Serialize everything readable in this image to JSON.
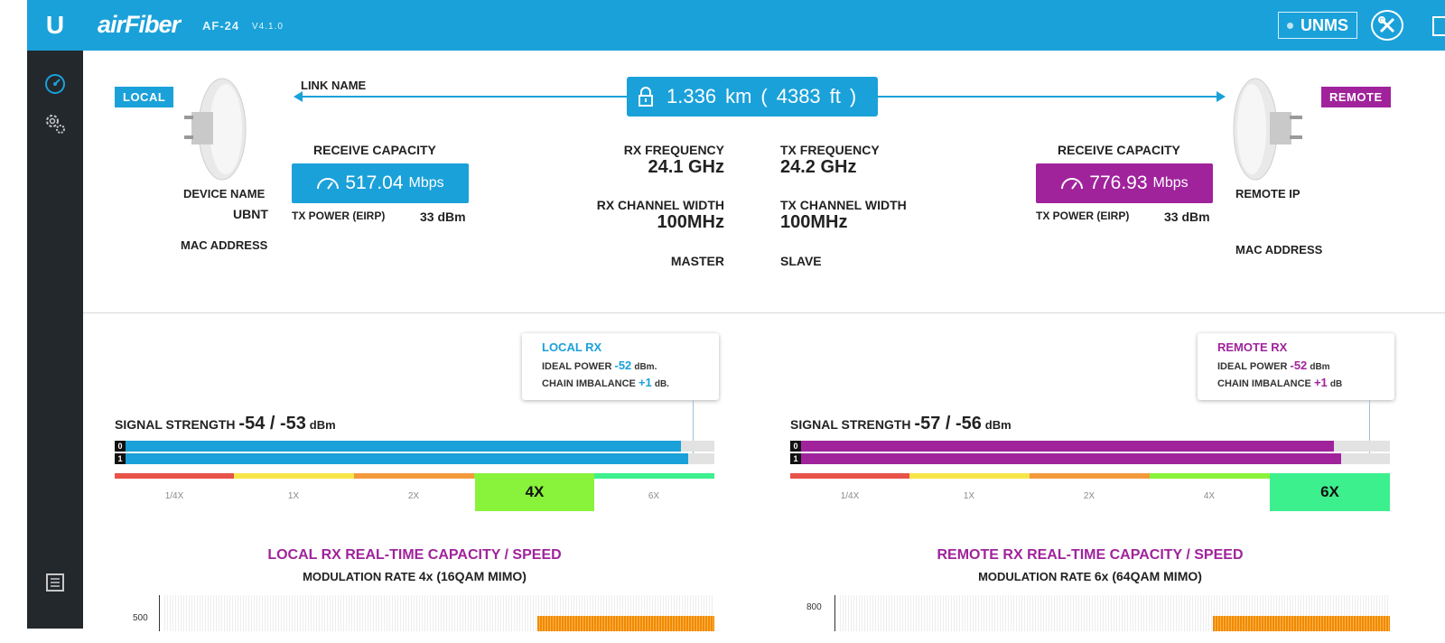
{
  "header": {
    "logo": "U",
    "brand": "airFiber",
    "model": "AF-24",
    "version": "V4.1.0",
    "unms_label": "UNMS",
    "icons": [
      "ubiquiti-logo-icon",
      "tools-icon",
      "logout-icon"
    ]
  },
  "sidebar": {
    "icons": [
      "dashboard-icon",
      "settings-icon",
      "log-icon"
    ]
  },
  "link": {
    "local_tag": "LOCAL",
    "remote_tag": "REMOTE",
    "link_name_label": "LINK NAME",
    "distance_km": "1.336",
    "distance_km_unit": "km",
    "distance_ft": "4383",
    "distance_ft_unit": "ft",
    "open_paren": "(",
    "close_paren": ")"
  },
  "local": {
    "device_name_label": "DEVICE NAME",
    "device_name": "UBNT",
    "mac_address_label": "MAC ADDRESS",
    "receive_capacity_label": "RECEIVE CAPACITY",
    "receive_capacity": "517.04",
    "receive_capacity_unit": "Mbps",
    "tx_power_label": "TX POWER (EIRP)",
    "tx_power": "33 dBm"
  },
  "remote": {
    "remote_ip_label": "REMOTE IP",
    "mac_address_label": "MAC ADDRESS",
    "receive_capacity_label": "RECEIVE CAPACITY",
    "receive_capacity": "776.93",
    "receive_capacity_unit": "Mbps",
    "tx_power_label": "TX POWER (EIRP)",
    "tx_power": "33 dBm"
  },
  "radio": {
    "rx_frequency_label": "RX FREQUENCY",
    "rx_frequency": "24.1 GHz",
    "tx_frequency_label": "TX FREQUENCY",
    "tx_frequency": "24.2 GHz",
    "rx_channel_width_label": "RX CHANNEL WIDTH",
    "rx_channel_width": "100MHz",
    "tx_channel_width_label": "TX CHANNEL WIDTH",
    "tx_channel_width": "100MHz",
    "local_role": "MASTER",
    "remote_role": "SLAVE"
  },
  "local_rx": {
    "tooltip_title": "LOCAL RX",
    "ideal_power_label": "IDEAL POWER",
    "ideal_power": "-52",
    "ideal_power_unit": "dBm.",
    "chain_imbalance_label": "CHAIN IMBALANCE",
    "chain_imbalance": "+1",
    "chain_imbalance_unit": "dB.",
    "signal_label": "SIGNAL STRENGTH",
    "signal_value": "-54 / -53",
    "signal_unit": "dBm",
    "chain0_label": "0",
    "chain1_label": "1",
    "chain0_fill": 0.943,
    "chain1_fill": 0.955,
    "modulation_labels": [
      "1/4X",
      "1X",
      "2X",
      "4X",
      "6X"
    ],
    "active_modulation": "4X",
    "capacity_title": "LOCAL RX  REAL-TIME CAPACITY / SPEED",
    "mod_rate_label": "MODULATION RATE",
    "mod_rate_value": "4x (16QAM MIMO)",
    "graph_tick": "500"
  },
  "remote_rx": {
    "tooltip_title": "REMOTE RX",
    "ideal_power_label": "IDEAL POWER",
    "ideal_power": "-52",
    "ideal_power_unit": "dBm",
    "chain_imbalance_label": "CHAIN IMBALANCE",
    "chain_imbalance": "+1",
    "chain_imbalance_unit": "dB",
    "signal_label": "SIGNAL STRENGTH",
    "signal_value": "-57 / -56",
    "signal_unit": "dBm",
    "chain0_label": "0",
    "chain1_label": "1",
    "chain0_fill": 0.905,
    "chain1_fill": 0.917,
    "modulation_labels": [
      "1/4X",
      "1X",
      "2X",
      "4X",
      "6X"
    ],
    "active_modulation": "6X",
    "capacity_title": "REMOTE RX  REAL-TIME CAPACITY / SPEED",
    "mod_rate_label": "MODULATION RATE",
    "mod_rate_value": "6x (64QAM MIMO)",
    "graph_tick": "800"
  },
  "colors": {
    "accent_blue": "#1aa1d9",
    "remote_magenta": "#a0239c",
    "sidebar": "#23282d",
    "mod_1_4x": "#e8534a",
    "mod_1x": "#f6e64a",
    "mod_2x": "#f39a3c",
    "mod_4x": "#89f23b",
    "mod_6x": "#3df08e"
  }
}
